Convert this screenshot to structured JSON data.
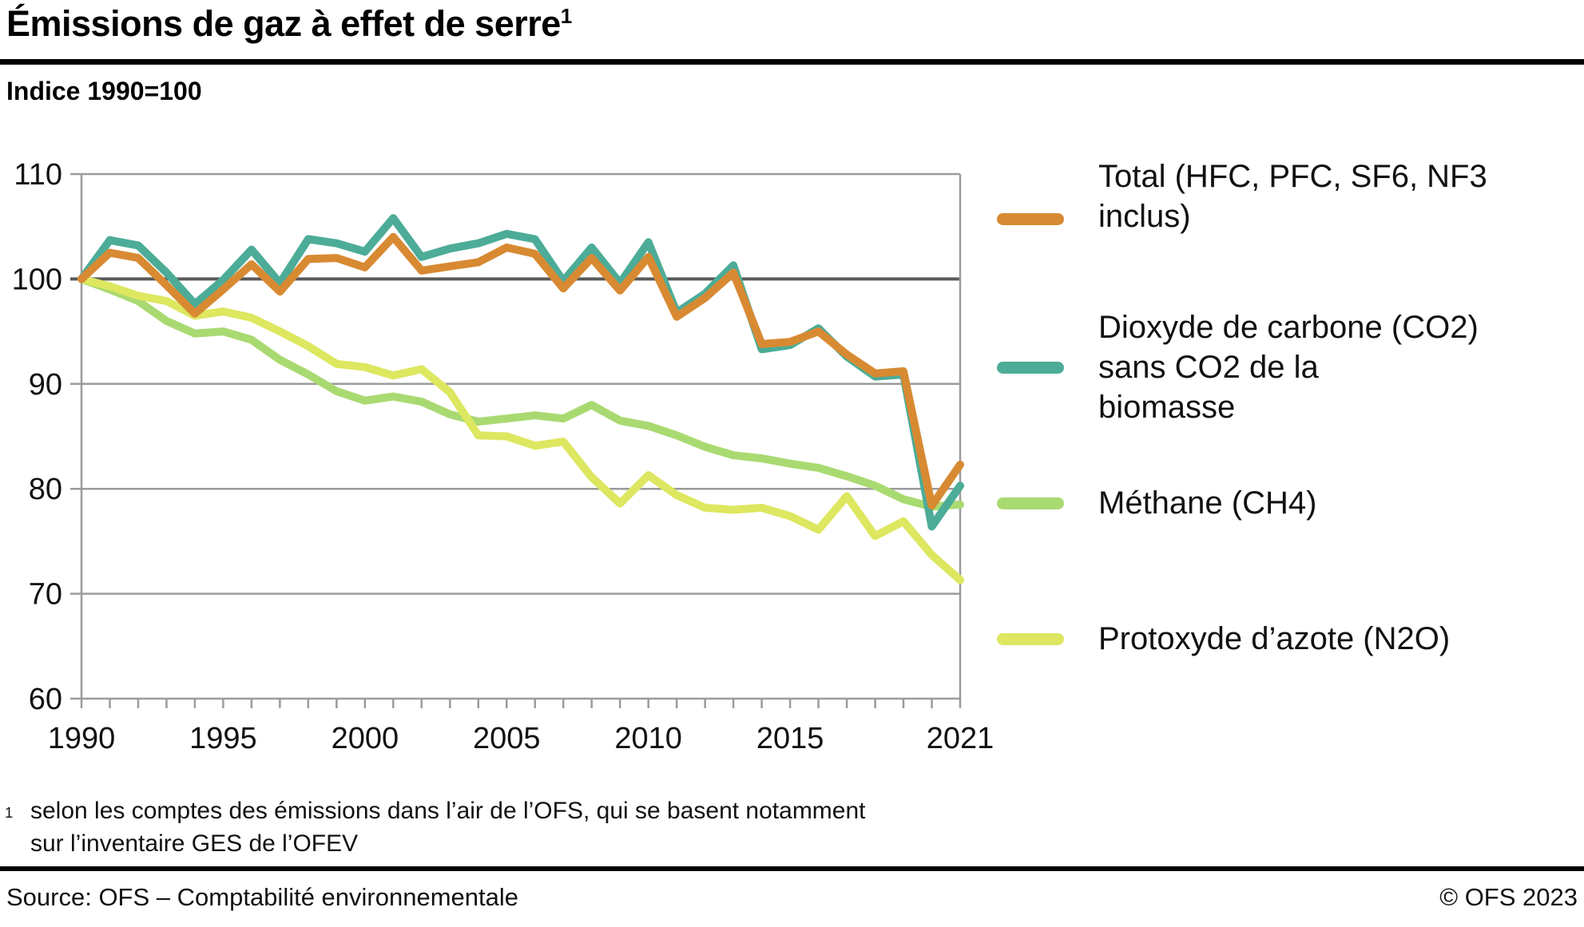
{
  "header": {
    "title": "Émissions de gaz à effet de serre",
    "title_sup": "1"
  },
  "footnote": {
    "marker": "1",
    "text": "selon les comptes des émissions dans l’air de l’OFS, qui se basent notamment\nsur l’inventaire GES de l’OFEV"
  },
  "source_bar": {
    "source": "Source: OFS – Comptabilité environnementale",
    "copyright": "© OFS 2023"
  },
  "chart_data": {
    "type": "line",
    "ylabel": "Indice 1990=100",
    "xlim": [
      1990,
      2021
    ],
    "ylim": [
      60,
      110
    ],
    "yticks": [
      60,
      70,
      80,
      90,
      100,
      110
    ],
    "xticks": [
      1990,
      1995,
      2000,
      2005,
      2010,
      2015,
      2021
    ],
    "baseline": 100,
    "grid": true,
    "legend_position": "right",
    "x": [
      1990,
      1991,
      1992,
      1993,
      1994,
      1995,
      1996,
      1997,
      1998,
      1999,
      2000,
      2001,
      2002,
      2003,
      2004,
      2005,
      2006,
      2007,
      2008,
      2009,
      2010,
      2011,
      2012,
      2013,
      2014,
      2015,
      2016,
      2017,
      2018,
      2019,
      2020,
      2021
    ],
    "series": [
      {
        "id": "total",
        "label": "Total (HFC, PFC, SF6, NF3\ninclus)",
        "color": "#D88A32",
        "draw_order": 4,
        "values": [
          100,
          102.5,
          102.0,
          99.4,
          96.7,
          99.0,
          101.4,
          98.8,
          101.9,
          102.0,
          101.1,
          104.0,
          100.8,
          101.2,
          101.6,
          103.0,
          102.4,
          99.1,
          102.0,
          98.9,
          102.1,
          96.4,
          98.2,
          100.6,
          93.8,
          94.0,
          95.0,
          92.8,
          91.0,
          91.2,
          78.4,
          82.3
        ]
      },
      {
        "id": "co2",
        "label": "Dioxyde de carbone (CO2)\nsans CO2 de la\nbiomasse",
        "color": "#4CAC97",
        "draw_order": 3,
        "values": [
          100,
          103.7,
          103.2,
          100.6,
          97.6,
          99.9,
          102.8,
          99.6,
          103.8,
          103.4,
          102.6,
          105.8,
          102.1,
          102.9,
          103.4,
          104.3,
          103.8,
          99.8,
          103.0,
          99.6,
          103.5,
          96.8,
          98.6,
          101.3,
          93.3,
          93.7,
          95.3,
          92.6,
          90.7,
          90.9,
          76.4,
          80.3
        ]
      },
      {
        "id": "ch4",
        "label": "Méthane (CH4)",
        "color": "#A9DA71",
        "draw_order": 1,
        "values": [
          100,
          99.0,
          97.9,
          96.0,
          94.8,
          95.0,
          94.2,
          92.3,
          90.9,
          89.3,
          88.4,
          88.8,
          88.3,
          87.1,
          86.4,
          86.7,
          87.0,
          86.7,
          88.0,
          86.5,
          86.0,
          85.1,
          84.0,
          83.2,
          82.9,
          82.4,
          82.0,
          81.2,
          80.3,
          79.0,
          78.3,
          78.5
        ]
      },
      {
        "id": "n2o",
        "label": "Protoxyde d’azote (N2O)",
        "color": "#DDE75F",
        "draw_order": 2,
        "values": [
          100,
          99.3,
          98.4,
          97.9,
          96.5,
          96.9,
          96.3,
          95.0,
          93.6,
          91.9,
          91.6,
          90.8,
          91.4,
          89.2,
          85.1,
          85.0,
          84.1,
          84.5,
          81.1,
          78.6,
          81.3,
          79.4,
          78.2,
          78.0,
          78.2,
          77.4,
          76.1,
          79.3,
          75.5,
          76.9,
          73.7,
          71.3
        ]
      }
    ],
    "colors": {
      "grid": "#9B9B9B",
      "baseline_grid": "#5A5A5A",
      "tick_text": "#111111"
    }
  }
}
